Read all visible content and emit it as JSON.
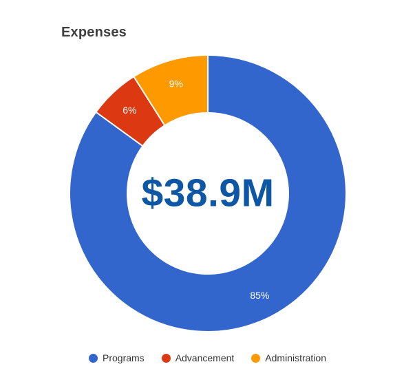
{
  "chart_data": {
    "type": "pie",
    "subtype": "donut",
    "title": "Expenses",
    "center_label": "$38.9M",
    "center_label_color": "#0d57a5",
    "legend_position": "bottom",
    "start_angle_deg": 0,
    "direction": "clockwise",
    "slices": [
      {
        "label": "Programs",
        "value_pct": 85,
        "pct_label": "85%",
        "color": "#3366cc"
      },
      {
        "label": "Advancement",
        "value_pct": 6,
        "pct_label": "6%",
        "color": "#dc3912"
      },
      {
        "label": "Administration",
        "value_pct": 9,
        "pct_label": "9%",
        "color": "#ff9900"
      }
    ]
  }
}
